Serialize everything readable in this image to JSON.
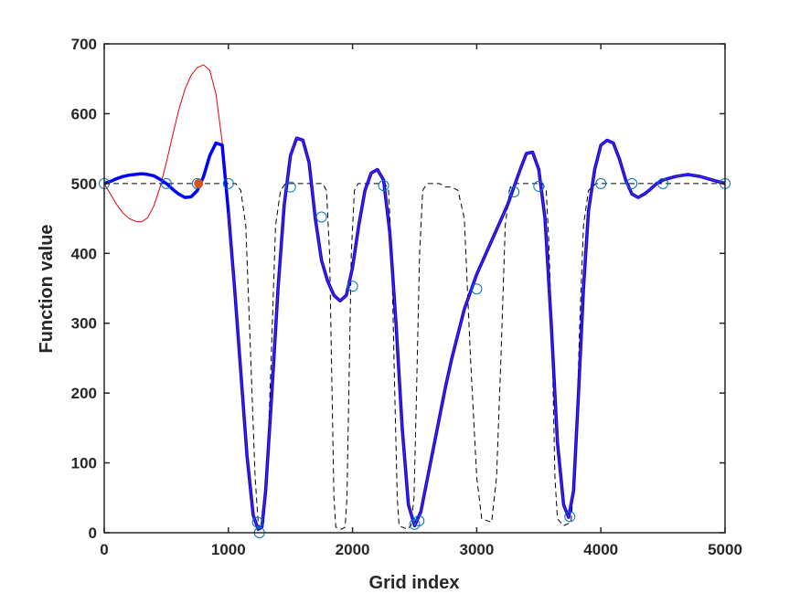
{
  "chart_data": {
    "type": "line",
    "title": "",
    "xlabel": "Grid index",
    "ylabel": "Function value",
    "xlim": [
      0,
      5000
    ],
    "ylim": [
      0,
      700
    ],
    "xticks": [
      0,
      1000,
      2000,
      3000,
      4000,
      5000
    ],
    "yticks": [
      0,
      100,
      200,
      300,
      400,
      500,
      600,
      700
    ],
    "xtick_labels": [
      "0",
      "1000",
      "2000",
      "3000",
      "4000",
      "5000"
    ],
    "ytick_labels": [
      "0",
      "100",
      "200",
      "300",
      "400",
      "500",
      "600",
      "700"
    ],
    "grid": false,
    "legend": false,
    "colors": {
      "axes": "#262626",
      "dashed_series": "#000000",
      "red_series": "#e8000b",
      "blue_series": "#0000ff",
      "purple_series": "#7e2f8e",
      "circle_markers": "#0072bd",
      "filled_marker": "#d95319"
    },
    "series": [
      {
        "style": "dashed",
        "points": [
          [
            0,
            500
          ],
          [
            1060,
            500
          ],
          [
            1100,
            490
          ],
          [
            1140,
            440
          ],
          [
            1180,
            250
          ],
          [
            1215,
            80
          ],
          [
            1240,
            15
          ],
          [
            1260,
            5
          ],
          [
            1285,
            15
          ],
          [
            1310,
            80
          ],
          [
            1345,
            250
          ],
          [
            1380,
            440
          ],
          [
            1420,
            490
          ],
          [
            1460,
            500
          ],
          [
            1760,
            500
          ],
          [
            1790,
            490
          ],
          [
            1815,
            400
          ],
          [
            1835,
            200
          ],
          [
            1850,
            50
          ],
          [
            1865,
            8
          ],
          [
            1910,
            5
          ],
          [
            1940,
            8
          ],
          [
            1955,
            50
          ],
          [
            1970,
            200
          ],
          [
            1990,
            400
          ],
          [
            2015,
            490
          ],
          [
            2045,
            500
          ],
          [
            2260,
            500
          ],
          [
            2290,
            490
          ],
          [
            2315,
            400
          ],
          [
            2340,
            200
          ],
          [
            2360,
            50
          ],
          [
            2375,
            10
          ],
          [
            2440,
            5
          ],
          [
            2470,
            10
          ],
          [
            2495,
            50
          ],
          [
            2515,
            200
          ],
          [
            2540,
            400
          ],
          [
            2565,
            490
          ],
          [
            2600,
            500
          ],
          [
            2700,
            500
          ],
          [
            2750,
            495
          ],
          [
            2800,
            495
          ],
          [
            2850,
            490
          ],
          [
            2900,
            450
          ],
          [
            2950,
            250
          ],
          [
            3000,
            80
          ],
          [
            3040,
            20
          ],
          [
            3120,
            15
          ],
          [
            3160,
            80
          ],
          [
            3195,
            250
          ],
          [
            3230,
            440
          ],
          [
            3270,
            495
          ],
          [
            3320,
            500
          ],
          [
            3530,
            500
          ],
          [
            3560,
            490
          ],
          [
            3580,
            420
          ],
          [
            3610,
            250
          ],
          [
            3630,
            80
          ],
          [
            3650,
            20
          ],
          [
            3700,
            10
          ],
          [
            3760,
            15
          ],
          [
            3800,
            120
          ],
          [
            3830,
            300
          ],
          [
            3860,
            440
          ],
          [
            3900,
            490
          ],
          [
            3960,
            500
          ],
          [
            5000,
            500
          ]
        ]
      },
      {
        "style": "thin-red",
        "points": [
          [
            0,
            500
          ],
          [
            50,
            485
          ],
          [
            100,
            470
          ],
          [
            150,
            458
          ],
          [
            200,
            450
          ],
          [
            250,
            446
          ],
          [
            300,
            445
          ],
          [
            350,
            451
          ],
          [
            400,
            468
          ],
          [
            450,
            495
          ],
          [
            500,
            530
          ],
          [
            550,
            568
          ],
          [
            600,
            605
          ],
          [
            650,
            635
          ],
          [
            700,
            655
          ],
          [
            750,
            666
          ],
          [
            800,
            670
          ],
          [
            850,
            662
          ],
          [
            900,
            628
          ],
          [
            950,
            560
          ],
          [
            1000,
            450
          ]
        ]
      },
      {
        "style": "thick-blue",
        "points": [
          [
            0,
            500
          ],
          [
            50,
            503
          ],
          [
            100,
            507
          ],
          [
            150,
            510
          ],
          [
            200,
            512
          ],
          [
            250,
            513
          ],
          [
            300,
            514
          ],
          [
            350,
            513
          ],
          [
            400,
            511
          ],
          [
            450,
            506
          ],
          [
            500,
            500
          ],
          [
            550,
            492
          ],
          [
            600,
            485
          ],
          [
            650,
            480
          ],
          [
            700,
            481
          ],
          [
            750,
            490
          ],
          [
            800,
            510
          ],
          [
            850,
            540
          ],
          [
            900,
            558
          ],
          [
            950,
            555
          ],
          [
            1000,
            460
          ]
        ]
      },
      {
        "style": "main-blue",
        "points": [
          [
            1000,
            460
          ],
          [
            1050,
            350
          ],
          [
            1100,
            230
          ],
          [
            1150,
            110
          ],
          [
            1200,
            25
          ],
          [
            1240,
            5
          ],
          [
            1270,
            8
          ],
          [
            1300,
            60
          ],
          [
            1350,
            200
          ],
          [
            1400,
            350
          ],
          [
            1450,
            470
          ],
          [
            1500,
            540
          ],
          [
            1550,
            565
          ],
          [
            1600,
            562
          ],
          [
            1650,
            530
          ],
          [
            1700,
            450
          ],
          [
            1750,
            390
          ],
          [
            1800,
            360
          ],
          [
            1850,
            340
          ],
          [
            1900,
            332
          ],
          [
            1950,
            340
          ],
          [
            2000,
            380
          ],
          [
            2050,
            440
          ],
          [
            2100,
            490
          ],
          [
            2150,
            515
          ],
          [
            2200,
            520
          ],
          [
            2250,
            505
          ],
          [
            2300,
            430
          ],
          [
            2350,
            300
          ],
          [
            2400,
            150
          ],
          [
            2450,
            40
          ],
          [
            2500,
            10
          ],
          [
            2550,
            30
          ],
          [
            2600,
            75
          ],
          [
            2650,
            120
          ],
          [
            2700,
            165
          ],
          [
            2750,
            210
          ],
          [
            2800,
            250
          ],
          [
            2850,
            285
          ],
          [
            2900,
            320
          ],
          [
            2950,
            345
          ],
          [
            3000,
            370
          ],
          [
            3050,
            390
          ],
          [
            3100,
            410
          ],
          [
            3150,
            430
          ],
          [
            3200,
            450
          ],
          [
            3250,
            470
          ],
          [
            3300,
            495
          ],
          [
            3350,
            520
          ],
          [
            3400,
            543
          ],
          [
            3450,
            545
          ],
          [
            3500,
            520
          ],
          [
            3550,
            450
          ],
          [
            3600,
            300
          ],
          [
            3650,
            130
          ],
          [
            3700,
            40
          ],
          [
            3740,
            22
          ],
          [
            3780,
            60
          ],
          [
            3820,
            200
          ],
          [
            3860,
            350
          ],
          [
            3900,
            460
          ],
          [
            3950,
            520
          ],
          [
            4000,
            555
          ],
          [
            4050,
            562
          ],
          [
            4100,
            558
          ],
          [
            4150,
            535
          ],
          [
            4200,
            505
          ],
          [
            4250,
            485
          ],
          [
            4300,
            480
          ],
          [
            4350,
            485
          ],
          [
            4400,
            492
          ],
          [
            4450,
            500
          ],
          [
            4500,
            505
          ],
          [
            4600,
            510
          ],
          [
            4700,
            513
          ],
          [
            4800,
            510
          ],
          [
            4900,
            505
          ],
          [
            5000,
            500
          ]
        ]
      }
    ],
    "markers": {
      "circles": [
        [
          0,
          500
        ],
        [
          500,
          500
        ],
        [
          750,
          500
        ],
        [
          1000,
          500
        ],
        [
          1235,
          15
        ],
        [
          1250,
          0
        ],
        [
          1500,
          495
        ],
        [
          1750,
          452
        ],
        [
          2000,
          353
        ],
        [
          2250,
          497
        ],
        [
          2500,
          12
        ],
        [
          2535,
          17
        ],
        [
          3000,
          349
        ],
        [
          3300,
          488
        ],
        [
          3500,
          496
        ],
        [
          3750,
          23
        ],
        [
          4000,
          500
        ],
        [
          4250,
          500
        ],
        [
          4500,
          500
        ],
        [
          5000,
          500
        ]
      ],
      "filled": [
        [
          760,
          500
        ]
      ]
    }
  }
}
